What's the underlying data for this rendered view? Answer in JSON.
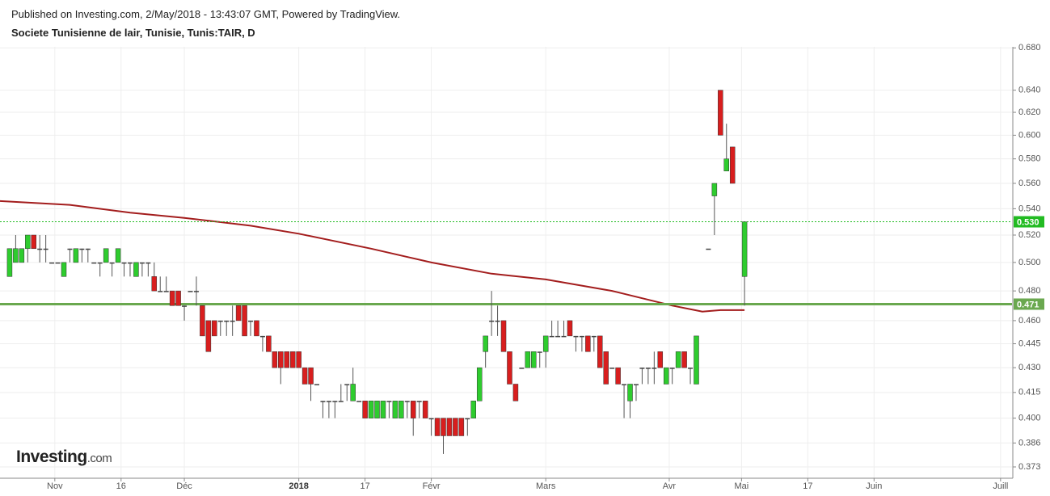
{
  "chart_data": {
    "type": "candlestick",
    "source": "Published on Investing.com, 2/May/2018 - 13:43:07 GMT, Powered by TradingView.",
    "title": "Societe Tunisienne de lair, Tunisie, Tunis:TAIR, D",
    "logo": {
      "name": "Investing",
      "suffix": ".com"
    },
    "log_scale": true,
    "grid": true,
    "up_color": "#2ecc2e",
    "down_color": "#d81e1e",
    "x": [
      0,
      1,
      2,
      3,
      4,
      5,
      6,
      7,
      8,
      9,
      10,
      11,
      12,
      13,
      14,
      15,
      16,
      17,
      18,
      19,
      20,
      21,
      22,
      23,
      24,
      25,
      26,
      27,
      28,
      29,
      30,
      31,
      32,
      33,
      34,
      35,
      36,
      37,
      38,
      39,
      40,
      41,
      42,
      43,
      44,
      45,
      46,
      47,
      48,
      49,
      50,
      51,
      52,
      53,
      54,
      55,
      56,
      57,
      58,
      59,
      60,
      61,
      62,
      63,
      64,
      65,
      66,
      67,
      68,
      69,
      70,
      71,
      72,
      73,
      74,
      75,
      76,
      77,
      78,
      79,
      80,
      81,
      82,
      83,
      84,
      85,
      86,
      87,
      88,
      89,
      90,
      91,
      92,
      93,
      94,
      95,
      96,
      97,
      98,
      99,
      100,
      101,
      102,
      103,
      104,
      105,
      106,
      107,
      108,
      109,
      110,
      111,
      112,
      113,
      114,
      116,
      117,
      118,
      119,
      120,
      122
    ],
    "open": [
      0.49,
      0.5,
      0.5,
      0.51,
      0.52,
      0.51,
      0.51,
      0.5,
      0.5,
      0.49,
      0.51,
      0.5,
      0.51,
      0.51,
      0.5,
      0.5,
      0.5,
      0.5,
      0.5,
      0.5,
      0.5,
      0.49,
      0.5,
      0.5,
      0.49,
      0.48,
      0.48,
      0.48,
      0.48,
      0.47,
      0.48,
      0.48,
      0.47,
      0.46,
      0.46,
      0.46,
      0.46,
      0.46,
      0.47,
      0.47,
      0.46,
      0.46,
      0.45,
      0.45,
      0.44,
      0.44,
      0.44,
      0.44,
      0.44,
      0.43,
      0.43,
      0.42,
      0.41,
      0.41,
      0.41,
      0.41,
      0.42,
      0.41,
      0.41,
      0.41,
      0.4,
      0.4,
      0.4,
      0.41,
      0.4,
      0.4,
      0.41,
      0.41,
      0.41,
      0.41,
      0.4,
      0.4,
      0.4,
      0.4,
      0.4,
      0.4,
      0.4,
      0.4,
      0.41,
      0.44,
      0.46,
      0.46,
      0.46,
      0.44,
      0.42,
      0.43,
      0.43,
      0.43,
      0.44,
      0.44,
      0.45,
      0.45,
      0.45,
      0.46,
      0.45,
      0.45,
      0.45,
      0.45,
      0.45,
      0.44,
      0.43,
      0.43,
      0.42,
      0.41,
      0.42,
      0.43,
      0.43,
      0.43,
      0.44,
      0.42,
      0.43,
      0.43,
      0.44,
      0.43,
      0.42,
      0.51,
      0.55,
      0.64,
      0.57,
      0.59,
      0.49
    ],
    "high": [
      0.51,
      0.52,
      0.51,
      0.52,
      0.52,
      0.52,
      0.52,
      0.5,
      0.5,
      0.5,
      0.51,
      0.51,
      0.51,
      0.51,
      0.5,
      0.5,
      0.51,
      0.5,
      0.51,
      0.5,
      0.5,
      0.5,
      0.5,
      0.5,
      0.5,
      0.49,
      0.49,
      0.48,
      0.48,
      0.47,
      0.48,
      0.49,
      0.47,
      0.46,
      0.46,
      0.46,
      0.46,
      0.47,
      0.47,
      0.47,
      0.46,
      0.46,
      0.45,
      0.45,
      0.44,
      0.44,
      0.44,
      0.44,
      0.44,
      0.43,
      0.43,
      0.42,
      0.41,
      0.41,
      0.41,
      0.42,
      0.42,
      0.43,
      0.41,
      0.41,
      0.41,
      0.41,
      0.41,
      0.41,
      0.41,
      0.41,
      0.41,
      0.41,
      0.41,
      0.41,
      0.4,
      0.4,
      0.4,
      0.4,
      0.4,
      0.4,
      0.4,
      0.41,
      0.43,
      0.45,
      0.48,
      0.47,
      0.46,
      0.44,
      0.42,
      0.43,
      0.44,
      0.44,
      0.44,
      0.45,
      0.46,
      0.46,
      0.46,
      0.46,
      0.45,
      0.45,
      0.45,
      0.45,
      0.45,
      0.44,
      0.43,
      0.43,
      0.42,
      0.42,
      0.42,
      0.43,
      0.43,
      0.44,
      0.44,
      0.43,
      0.43,
      0.44,
      0.44,
      0.43,
      0.45,
      0.51,
      0.56,
      0.64,
      0.61,
      0.59,
      0.53
    ],
    "low": [
      0.49,
      0.5,
      0.5,
      0.5,
      0.51,
      0.5,
      0.5,
      0.5,
      0.5,
      0.49,
      0.5,
      0.5,
      0.5,
      0.5,
      0.5,
      0.49,
      0.5,
      0.49,
      0.5,
      0.49,
      0.49,
      0.49,
      0.49,
      0.49,
      0.48,
      0.48,
      0.48,
      0.47,
      0.47,
      0.46,
      0.48,
      0.47,
      0.45,
      0.44,
      0.45,
      0.45,
      0.45,
      0.45,
      0.46,
      0.45,
      0.45,
      0.45,
      0.44,
      0.44,
      0.43,
      0.42,
      0.43,
      0.43,
      0.43,
      0.42,
      0.41,
      0.42,
      0.4,
      0.4,
      0.4,
      0.41,
      0.41,
      0.41,
      0.41,
      0.4,
      0.4,
      0.4,
      0.4,
      0.4,
      0.4,
      0.4,
      0.4,
      0.39,
      0.4,
      0.4,
      0.39,
      0.39,
      0.38,
      0.39,
      0.39,
      0.39,
      0.39,
      0.4,
      0.41,
      0.43,
      0.45,
      0.45,
      0.44,
      0.42,
      0.41,
      0.43,
      0.43,
      0.43,
      0.43,
      0.43,
      0.45,
      0.45,
      0.45,
      0.45,
      0.44,
      0.44,
      0.44,
      0.44,
      0.43,
      0.42,
      0.43,
      0.42,
      0.4,
      0.4,
      0.41,
      0.42,
      0.42,
      0.42,
      0.43,
      0.42,
      0.42,
      0.43,
      0.43,
      0.42,
      0.42,
      0.51,
      0.52,
      0.6,
      0.57,
      0.56,
      0.47
    ],
    "close": [
      0.51,
      0.51,
      0.51,
      0.52,
      0.51,
      0.51,
      0.51,
      0.5,
      0.5,
      0.5,
      0.51,
      0.51,
      0.51,
      0.51,
      0.5,
      0.5,
      0.51,
      0.5,
      0.51,
      0.5,
      0.5,
      0.5,
      0.5,
      0.5,
      0.48,
      0.48,
      0.48,
      0.47,
      0.47,
      0.47,
      0.48,
      0.48,
      0.45,
      0.44,
      0.45,
      0.46,
      0.46,
      0.46,
      0.46,
      0.45,
      0.46,
      0.45,
      0.45,
      0.44,
      0.43,
      0.43,
      0.43,
      0.43,
      0.43,
      0.42,
      0.42,
      0.42,
      0.41,
      0.41,
      0.41,
      0.41,
      0.42,
      0.42,
      0.41,
      0.4,
      0.41,
      0.41,
      0.41,
      0.41,
      0.41,
      0.41,
      0.41,
      0.4,
      0.41,
      0.4,
      0.4,
      0.39,
      0.39,
      0.39,
      0.39,
      0.39,
      0.4,
      0.41,
      0.43,
      0.45,
      0.46,
      0.46,
      0.44,
      0.42,
      0.41,
      0.43,
      0.44,
      0.44,
      0.44,
      0.45,
      0.45,
      0.45,
      0.45,
      0.45,
      0.45,
      0.45,
      0.44,
      0.45,
      0.43,
      0.42,
      0.43,
      0.42,
      0.42,
      0.42,
      0.42,
      0.43,
      0.43,
      0.43,
      0.43,
      0.43,
      0.43,
      0.44,
      0.43,
      0.43,
      0.45,
      0.51,
      0.56,
      0.6,
      0.58,
      0.56,
      0.53
    ],
    "ma": {
      "color": "#a31d1d",
      "x": [
        -1.6,
        10,
        20,
        29,
        40,
        48,
        60,
        70,
        80,
        89,
        100,
        110,
        115,
        118,
        122
      ],
      "values": [
        0.546,
        0.543,
        0.537,
        0.533,
        0.527,
        0.521,
        0.51,
        0.5,
        0.492,
        0.488,
        0.48,
        0.47,
        0.466,
        0.467,
        0.467
      ]
    },
    "hlines": [
      {
        "value": 0.471,
        "label": "0.471",
        "color": "#6aa84f",
        "style": "solid"
      },
      {
        "value": 0.53,
        "label": "0.530",
        "color": "#22bb22",
        "style": "dotted"
      }
    ],
    "xlim": [
      -1.6,
      166.4
    ],
    "xticks": [
      {
        "value": 7.5,
        "label": "Nov"
      },
      {
        "value": 18.5,
        "label": "16"
      },
      {
        "value": 29,
        "label": "Déc"
      },
      {
        "value": 48,
        "label": "2018"
      },
      {
        "value": 59,
        "label": "17"
      },
      {
        "value": 70,
        "label": "Févr"
      },
      {
        "value": 89,
        "label": "Mars"
      },
      {
        "value": 109.5,
        "label": "Avr"
      },
      {
        "value": 121.5,
        "label": "Mai"
      },
      {
        "value": 132.5,
        "label": "17"
      },
      {
        "value": 143.5,
        "label": "Juin"
      },
      {
        "value": 164.5,
        "label": "Juill"
      }
    ],
    "ylim": [
      0.367,
      0.681
    ],
    "yticks": [
      {
        "value": 0.373,
        "label": "0.373"
      },
      {
        "value": 0.386,
        "label": "0.386"
      },
      {
        "value": 0.4,
        "label": "0.400"
      },
      {
        "value": 0.415,
        "label": "0.415"
      },
      {
        "value": 0.43,
        "label": "0.430"
      },
      {
        "value": 0.445,
        "label": "0.445"
      },
      {
        "value": 0.46,
        "label": "0.460"
      },
      {
        "value": 0.48,
        "label": "0.480"
      },
      {
        "value": 0.5,
        "label": "0.500"
      },
      {
        "value": 0.52,
        "label": "0.520"
      },
      {
        "value": 0.54,
        "label": "0.540"
      },
      {
        "value": 0.56,
        "label": "0.560"
      },
      {
        "value": 0.58,
        "label": "0.580"
      },
      {
        "value": 0.6,
        "label": "0.600"
      },
      {
        "value": 0.62,
        "label": "0.620"
      },
      {
        "value": 0.64,
        "label": "0.640"
      },
      {
        "value": 0.68,
        "label": "0.680"
      }
    ]
  }
}
